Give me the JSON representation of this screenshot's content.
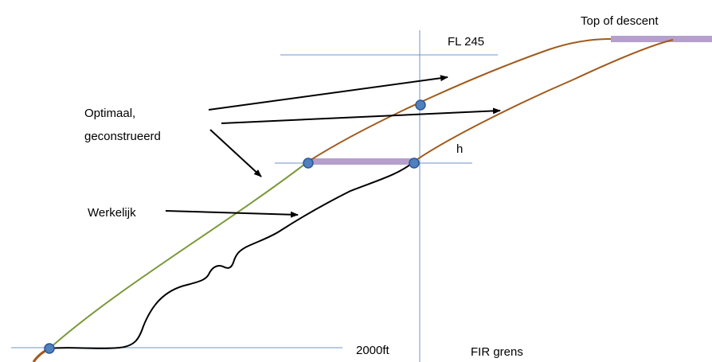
{
  "labels": {
    "top_of_descent": "Top of descent",
    "fl245": "FL 245",
    "h": "h",
    "optimaal_line1": "Optimaal,",
    "optimaal_line2": "geconstrueerd",
    "werkelijk": "Werkelijk",
    "ft2000": "2000ft",
    "fir_grens": "FIR grens"
  },
  "colors": {
    "reference_lines": "#6f95c9",
    "optimal_profile": "#a05a1c",
    "constructed_segment": "#7a9a3a",
    "level_segment": "#b59fcc",
    "point_fill": "#4f81bd",
    "point_stroke": "#2f5597",
    "actual_profile": "#000000",
    "arrows": "#000000"
  }
}
